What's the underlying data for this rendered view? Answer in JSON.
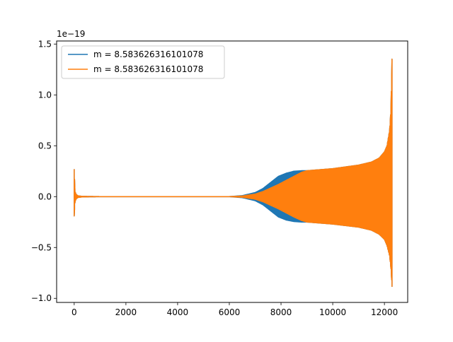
{
  "chart_data": {
    "type": "line",
    "title": "",
    "xlabel": "",
    "ylabel": "",
    "y_offset_label": "1e−19",
    "xlim": [
      -680,
      12900
    ],
    "ylim": [
      -1.04,
      1.53
    ],
    "x_ticks": [
      0,
      2000,
      4000,
      6000,
      8000,
      10000,
      12000
    ],
    "x_tick_labels": [
      "0",
      "2000",
      "4000",
      "6000",
      "8000",
      "10000",
      "12000"
    ],
    "y_ticks": [
      -1.0,
      -0.5,
      0.0,
      0.5,
      1.0,
      1.5
    ],
    "y_tick_labels": [
      "−1.0",
      "−0.5",
      "0.0",
      "0.5",
      "1.0",
      "1.5"
    ],
    "grid": false,
    "legend_position": "top-left",
    "series": [
      {
        "name": "m = 8.583626316101078",
        "color": "#1f77b4",
        "kind": "oscillation-envelope",
        "upper_envelope": {
          "x": [
            0,
            30,
            80,
            150,
            300,
            1000,
            6000,
            6500,
            7000,
            7300,
            7600,
            7900,
            8200,
            8500,
            8800,
            9000,
            10000,
            11000,
            11500,
            11800,
            12000,
            12100,
            12200,
            12250,
            12280,
            12300
          ],
          "y": [
            0.27,
            0.05,
            0.02,
            0.008,
            0.003,
            0.0005,
            0.0005,
            0.01,
            0.04,
            0.08,
            0.14,
            0.2,
            0.23,
            0.25,
            0.255,
            0.255,
            0.275,
            0.31,
            0.34,
            0.38,
            0.44,
            0.5,
            0.65,
            0.85,
            1.2,
            1.43
          ]
        },
        "lower_envelope": {
          "x": [
            0,
            30,
            80,
            150,
            300,
            1000,
            6000,
            6500,
            7000,
            7300,
            7600,
            7900,
            8200,
            8500,
            8800,
            9000,
            10000,
            11000,
            11500,
            11800,
            12000,
            12100,
            12200,
            12250,
            12280,
            12300
          ],
          "y": [
            -0.19,
            -0.05,
            -0.02,
            -0.008,
            -0.003,
            -0.0005,
            -0.0005,
            -0.01,
            -0.04,
            -0.08,
            -0.14,
            -0.2,
            -0.23,
            -0.245,
            -0.25,
            -0.25,
            -0.27,
            -0.3,
            -0.33,
            -0.37,
            -0.42,
            -0.48,
            -0.58,
            -0.7,
            -0.82,
            -0.92
          ]
        }
      },
      {
        "name": "m = 8.583626316101078",
        "color": "#ff7f0e",
        "kind": "oscillation-envelope",
        "upper_envelope": {
          "x": [
            0,
            30,
            80,
            150,
            300,
            1000,
            6000,
            6500,
            7000,
            7300,
            7600,
            7900,
            8200,
            8500,
            8800,
            9000,
            10000,
            11000,
            11500,
            11800,
            12000,
            12100,
            12200,
            12250,
            12280,
            12300
          ],
          "y": [
            0.27,
            0.05,
            0.02,
            0.008,
            0.003,
            0.0005,
            0.0005,
            0.006,
            0.025,
            0.05,
            0.085,
            0.12,
            0.16,
            0.2,
            0.24,
            0.255,
            0.275,
            0.31,
            0.34,
            0.38,
            0.44,
            0.5,
            0.65,
            0.85,
            1.2,
            1.43
          ]
        },
        "lower_envelope": {
          "x": [
            0,
            30,
            80,
            150,
            300,
            1000,
            6000,
            6500,
            7000,
            7300,
            7600,
            7900,
            8200,
            8500,
            8800,
            9000,
            10000,
            11000,
            11500,
            11800,
            12000,
            12100,
            12200,
            12250,
            12280,
            12300
          ],
          "y": [
            -0.19,
            -0.05,
            -0.02,
            -0.008,
            -0.003,
            -0.0005,
            -0.0005,
            -0.006,
            -0.025,
            -0.05,
            -0.085,
            -0.12,
            -0.16,
            -0.2,
            -0.235,
            -0.25,
            -0.27,
            -0.3,
            -0.33,
            -0.37,
            -0.42,
            -0.48,
            -0.58,
            -0.7,
            -0.82,
            -0.92
          ]
        }
      }
    ]
  }
}
